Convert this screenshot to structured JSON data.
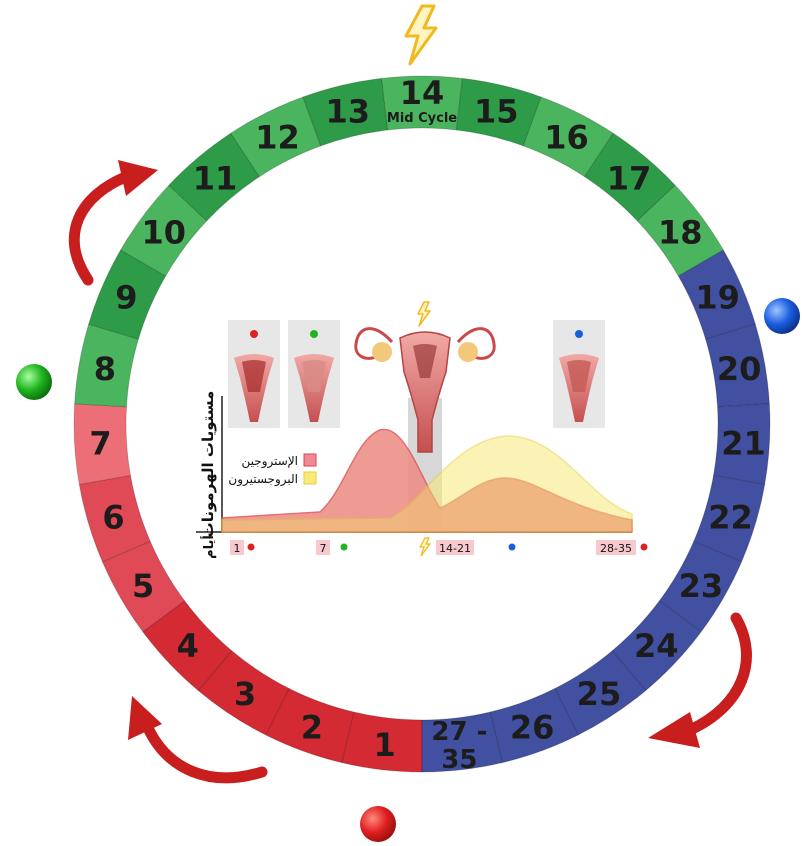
{
  "cycle": {
    "days": [
      {
        "label": "1",
        "phase": "menstrual"
      },
      {
        "label": "2",
        "phase": "menstrual"
      },
      {
        "label": "3",
        "phase": "menstrual"
      },
      {
        "label": "4",
        "phase": "menstrual"
      },
      {
        "label": "5",
        "phase": "menstrual"
      },
      {
        "label": "6",
        "phase": "menstrual"
      },
      {
        "label": "7",
        "phase": "menstrual"
      },
      {
        "label": "8",
        "phase": "follicular"
      },
      {
        "label": "9",
        "phase": "follicular"
      },
      {
        "label": "10",
        "phase": "follicular"
      },
      {
        "label": "11",
        "phase": "follicular"
      },
      {
        "label": "12",
        "phase": "follicular"
      },
      {
        "label": "13",
        "phase": "follicular"
      },
      {
        "label": "14",
        "phase": "follicular",
        "sub": "Mid Cycle"
      },
      {
        "label": "15",
        "phase": "follicular"
      },
      {
        "label": "16",
        "phase": "follicular"
      },
      {
        "label": "17",
        "phase": "follicular"
      },
      {
        "label": "18",
        "phase": "follicular"
      },
      {
        "label": "19",
        "phase": "luteal"
      },
      {
        "label": "20",
        "phase": "luteal"
      },
      {
        "label": "21",
        "phase": "luteal"
      },
      {
        "label": "22",
        "phase": "luteal"
      },
      {
        "label": "23",
        "phase": "luteal"
      },
      {
        "label": "24",
        "phase": "luteal"
      },
      {
        "label": "25",
        "phase": "luteal"
      },
      {
        "label": "26",
        "phase": "luteal"
      },
      {
        "label": "27 -|35",
        "phase": "luteal"
      }
    ]
  },
  "colors": {
    "menstrual": "#d42a33",
    "menstrual_light": "#ec6f78",
    "follicular": "#2e9b48",
    "follicular_light": "#4bb45e",
    "luteal": "#4150a0",
    "arrow": "#c81e1e",
    "red_dot": "#e02020",
    "green_dot": "#1fb41f",
    "blue_dot": "#1a5ee0",
    "lightning": "#f2b820",
    "estrogen": "#f08a96",
    "progesterone": "#f8ea7a"
  },
  "icons": {
    "lightning": "lightning-icon",
    "uterus": "uterus-icon",
    "dots": [
      "red-dot-icon",
      "green-dot-icon",
      "blue-dot-icon"
    ]
  },
  "chart": {
    "y_axis_label": "مستويات الهرمونات",
    "x_axis_label": "أيام",
    "legend_estrogen": "الإستروجين",
    "legend_progesterone": "البروجستيرون",
    "tick_1": "1",
    "tick_7": "7",
    "tick_14_21": "14-21",
    "tick_28_35": "28-35"
  }
}
